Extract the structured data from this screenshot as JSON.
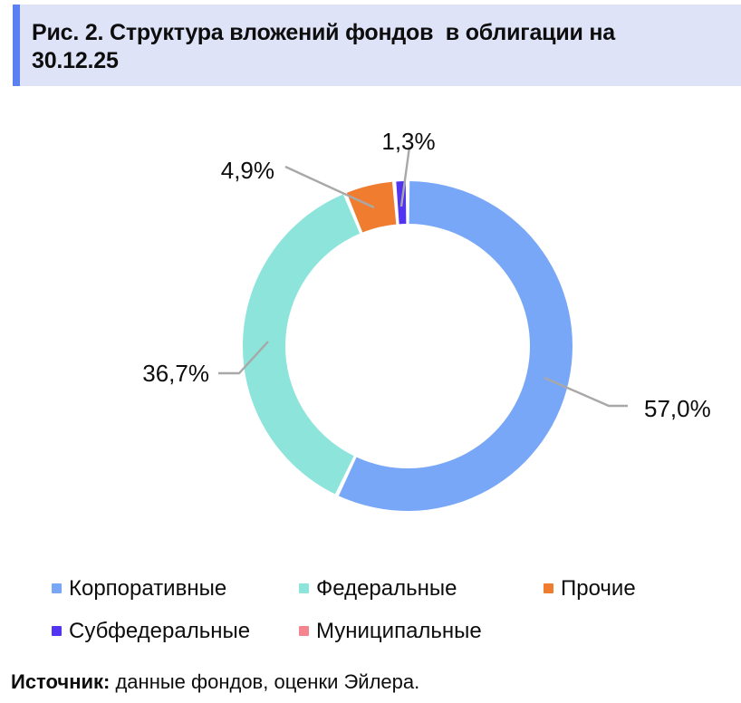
{
  "page": {
    "title": "Рис. 2. Структура вложений фондов  в облигации на 30.12.25",
    "source_label": "Источник:",
    "source_text": " данные фондов, оценки Эйлера."
  },
  "theme": {
    "header_bg": "#dee3f8",
    "header_bar": "#5b80f2",
    "leader_line": "#a8a8a8",
    "text": "#0d0d0d"
  },
  "chart_data": {
    "type": "pie",
    "subtype": "donut",
    "title": "Рис. 2. Структура вложений фондов в облигации на 30.12.25",
    "legend_position": "bottom",
    "start_angle_deg": 0,
    "direction": "clockwise",
    "inner_radius_ratio": 0.74,
    "slices": [
      {
        "id": "corporate",
        "label": "Корпоративные",
        "value": 57.0,
        "pct_label": "57,0%",
        "color": "#79a7f8"
      },
      {
        "id": "federal",
        "label": "Федеральные",
        "value": 36.7,
        "pct_label": "36,7%",
        "color": "#8ce4db"
      },
      {
        "id": "other",
        "label": "Прочие",
        "value": 4.9,
        "pct_label": "4,9%",
        "color": "#f07c30"
      },
      {
        "id": "subfederal",
        "label": "Субфедеральные",
        "value": 1.3,
        "pct_label": "1,3%",
        "color": "#5135f0"
      },
      {
        "id": "municipal",
        "label": "Муниципальные",
        "value": 0,
        "pct_label": "",
        "color": "#f4858f"
      }
    ]
  }
}
